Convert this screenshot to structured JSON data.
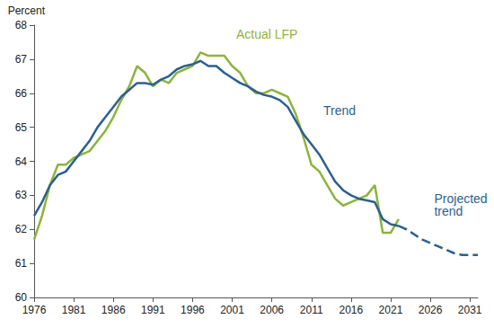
{
  "chart_data": {
    "type": "line",
    "y_label": "Percent",
    "x": [
      1976,
      1977,
      1978,
      1979,
      1980,
      1981,
      1982,
      1983,
      1984,
      1985,
      1986,
      1987,
      1988,
      1989,
      1990,
      1991,
      1992,
      1993,
      1994,
      1995,
      1996,
      1997,
      1998,
      1999,
      2000,
      2001,
      2002,
      2003,
      2004,
      2005,
      2006,
      2007,
      2008,
      2009,
      2010,
      2011,
      2012,
      2013,
      2014,
      2015,
      2016,
      2017,
      2018,
      2019,
      2020,
      2021,
      2022,
      2023,
      2024,
      2025,
      2026,
      2027,
      2028,
      2029,
      2030,
      2031,
      2032
    ],
    "series": [
      {
        "name": "Actual LFP",
        "color": "#8cb43c",
        "line_style": "solid",
        "values": [
          61.7,
          62.4,
          63.3,
          63.9,
          63.9,
          64.1,
          64.2,
          64.3,
          64.6,
          64.9,
          65.3,
          65.8,
          66.2,
          66.8,
          66.6,
          66.2,
          66.4,
          66.3,
          66.6,
          66.7,
          66.8,
          67.2,
          67.1,
          67.1,
          67.1,
          66.8,
          66.6,
          66.2,
          66.0,
          66.0,
          66.1,
          66.0,
          65.9,
          65.4,
          64.7,
          63.9,
          63.7,
          63.3,
          62.9,
          62.7,
          62.8,
          62.9,
          63.0,
          63.3,
          61.9,
          61.9,
          62.3,
          null,
          null,
          null,
          null,
          null,
          null,
          null,
          null,
          null,
          null
        ]
      },
      {
        "name": "Trend",
        "color": "#2d5f8e",
        "line_style": "solid",
        "values": [
          62.4,
          62.8,
          63.3,
          63.6,
          63.7,
          64.0,
          64.3,
          64.6,
          65.0,
          65.3,
          65.6,
          65.9,
          66.1,
          66.3,
          66.3,
          66.25,
          66.4,
          66.5,
          66.7,
          66.8,
          66.85,
          66.95,
          66.8,
          66.8,
          66.6,
          66.45,
          66.3,
          66.2,
          66.05,
          65.95,
          65.9,
          65.8,
          65.6,
          65.2,
          64.8,
          64.5,
          64.2,
          63.8,
          63.4,
          63.15,
          63.0,
          62.9,
          62.85,
          62.8,
          62.3,
          62.15,
          62.1,
          null,
          null,
          null,
          null,
          null,
          null,
          null,
          null,
          null,
          null
        ]
      },
      {
        "name": "Projected trend",
        "color": "#2d5f8e",
        "line_style": "dashed",
        "values": [
          null,
          null,
          null,
          null,
          null,
          null,
          null,
          null,
          null,
          null,
          null,
          null,
          null,
          null,
          null,
          null,
          null,
          null,
          null,
          null,
          null,
          null,
          null,
          null,
          null,
          null,
          null,
          null,
          null,
          null,
          null,
          null,
          null,
          null,
          null,
          null,
          null,
          null,
          null,
          null,
          null,
          null,
          null,
          null,
          null,
          null,
          62.1,
          62.0,
          61.85,
          61.7,
          61.6,
          61.5,
          61.4,
          61.3,
          61.25,
          61.25,
          61.25
        ]
      }
    ],
    "annotations": [
      {
        "text": "Actual LFP",
        "x": 2001.5,
        "y": 67.55
      },
      {
        "text": "Trend",
        "x": 2012.5,
        "y": 65.3
      },
      {
        "text": "Projected trend",
        "x": 2026.5,
        "y": 62.35
      }
    ],
    "xlim": [
      1976,
      2032
    ],
    "xticks": [
      1976,
      1981,
      1986,
      1991,
      1996,
      2001,
      2006,
      2011,
      2016,
      2021,
      2026,
      2031
    ],
    "ylim": [
      60,
      68
    ],
    "yticks": [
      60,
      61,
      62,
      63,
      64,
      65,
      66,
      67,
      68
    ],
    "grid": false
  }
}
